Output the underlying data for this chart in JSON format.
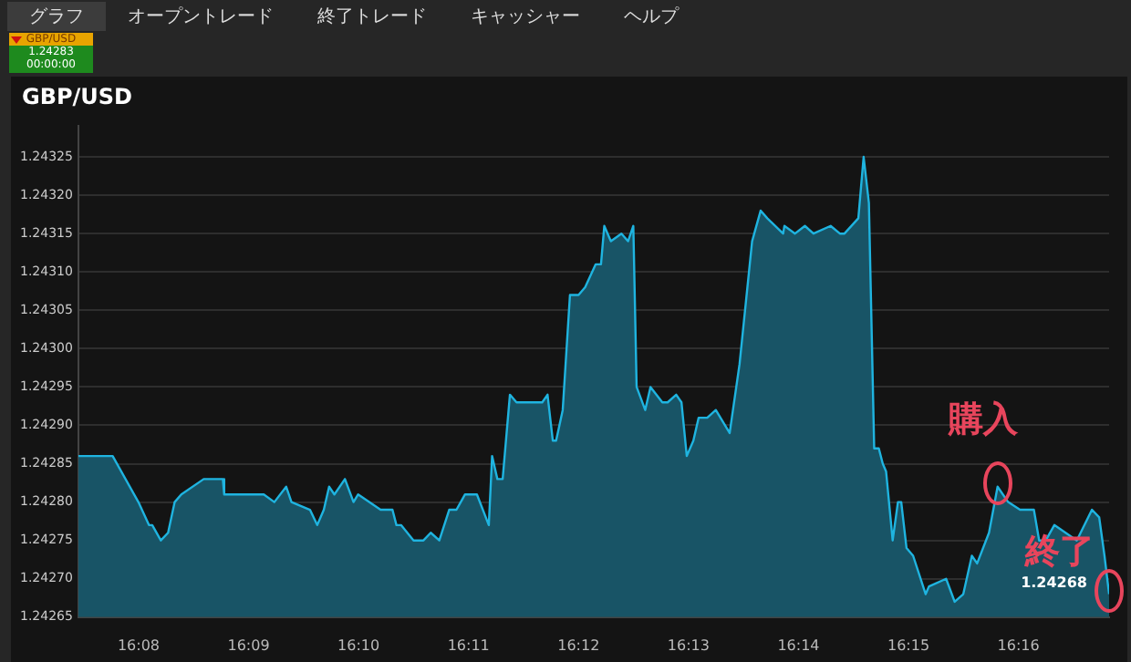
{
  "chart_data": {
    "type": "area",
    "title": "GBP/USD",
    "annotations": [
      "グラフ",
      "オープントレード",
      "終了トレード",
      "キャッシャー",
      "ヘルプ",
      "GBP/USD",
      "1.24283",
      "00:00:00",
      {
        "text": "購入",
        "x": 16.2635,
        "y": 1.24282
      },
      {
        "text": "終了",
        "x": 16.2804,
        "y": 1.24268
      }
    ],
    "x": [
      16.1242,
      16.125,
      16.1258,
      16.1294,
      16.1333,
      16.1349,
      16.1354,
      16.1367,
      16.1378,
      16.1388,
      16.1398,
      16.1432,
      16.1461,
      16.1463,
      16.1523,
      16.1539,
      16.1557,
      16.1565,
      16.1593,
      16.1604,
      16.1614,
      16.1622,
      16.163,
      16.1646,
      16.1659,
      16.1666,
      16.17,
      16.1718,
      16.1724,
      16.1731,
      16.175,
      16.1765,
      16.1776,
      16.1789,
      16.1804,
      16.1815,
      16.1828,
      16.1846,
      16.1864,
      16.1869,
      16.1877,
      16.1885,
      16.1896,
      16.1906,
      16.1945,
      16.1953,
      16.1961,
      16.1966,
      16.1976,
      16.1987,
      16.2,
      16.201,
      16.2026,
      16.2034,
      16.2039,
      16.2049,
      16.2065,
      16.2075,
      16.2083,
      16.2088,
      16.2101,
      16.2109,
      16.2127,
      16.2135,
      16.2148,
      16.2156,
      16.2164,
      16.2174,
      16.2182,
      16.2195,
      16.2208,
      16.2229,
      16.2244,
      16.2263,
      16.2276,
      16.2286,
      16.231,
      16.2312,
      16.2328,
      16.2343,
      16.2356,
      16.2382,
      16.2396,
      16.2403,
      16.2424,
      16.2432,
      16.244,
      16.2448,
      16.2455,
      16.2461,
      16.2466,
      16.2476,
      16.2484,
      16.2489,
      16.2497,
      16.2507,
      16.2526,
      16.2531,
      16.2557,
      16.257,
      16.2583,
      16.2596,
      16.2604,
      16.2622,
      16.2635,
      16.2651,
      16.2669,
      16.2682,
      16.269,
      16.2698,
      16.2708,
      16.2721,
      16.2755,
      16.2778,
      16.2789,
      16.2797,
      16.2804
    ],
    "series": [
      {
        "color": "#1fb4e0",
        "values": [
          1.24286,
          1.24286,
          1.24286,
          1.24286,
          1.2428,
          1.24277,
          1.24277,
          1.24275,
          1.24276,
          1.2428,
          1.24281,
          1.24283,
          1.24283,
          1.24281,
          1.24281,
          1.2428,
          1.24282,
          1.2428,
          1.24279,
          1.24277,
          1.24279,
          1.24282,
          1.24281,
          1.24283,
          1.2428,
          1.24281,
          1.24279,
          1.24279,
          1.24277,
          1.24277,
          1.24275,
          1.24275,
          1.24276,
          1.24275,
          1.24279,
          1.24279,
          1.24281,
          1.24281,
          1.24277,
          1.24286,
          1.24283,
          1.24283,
          1.24294,
          1.24293,
          1.24293,
          1.24294,
          1.24288,
          1.24288,
          1.24292,
          1.24307,
          1.24307,
          1.24308,
          1.24311,
          1.24311,
          1.24316,
          1.24314,
          1.24315,
          1.24314,
          1.24316,
          1.24295,
          1.24292,
          1.24295,
          1.24293,
          1.24293,
          1.24294,
          1.24293,
          1.24286,
          1.24288,
          1.24291,
          1.24291,
          1.24292,
          1.24289,
          1.24298,
          1.24314,
          1.24318,
          1.24317,
          1.24315,
          1.24316,
          1.24315,
          1.24316,
          1.24315,
          1.24316,
          1.24315,
          1.24315,
          1.24317,
          1.24325,
          1.24319,
          1.24287,
          1.24287,
          1.24285,
          1.24284,
          1.24275,
          1.2428,
          1.2428,
          1.24274,
          1.24273,
          1.24268,
          1.24269,
          1.2427,
          1.24267,
          1.24268,
          1.24273,
          1.24272,
          1.24276,
          1.24282,
          1.2428,
          1.24279,
          1.24279,
          1.24279,
          1.24275,
          1.24275,
          1.24277,
          1.24275,
          1.24279,
          1.24278,
          1.24273,
          1.24268
        ],
        "value_labels": [
          null,
          null,
          null,
          null,
          null,
          null,
          null,
          null,
          null,
          null,
          null,
          null,
          null,
          null,
          null,
          null,
          null,
          null,
          null,
          null,
          null,
          null,
          null,
          null,
          null,
          null,
          null,
          null,
          null,
          null,
          null,
          null,
          null,
          null,
          null,
          null,
          null,
          null,
          null,
          null,
          null,
          null,
          null,
          null,
          null,
          null,
          null,
          null,
          null,
          null,
          null,
          null,
          null,
          null,
          null,
          null,
          null,
          null,
          null,
          null,
          null,
          null,
          null,
          null,
          null,
          null,
          null,
          null,
          null,
          null,
          null,
          null,
          null,
          null,
          null,
          null,
          null,
          null,
          null,
          null,
          null,
          null,
          null,
          null,
          null,
          null,
          null,
          null,
          null,
          null,
          null,
          null,
          null,
          null,
          null,
          null,
          null,
          null,
          null,
          null,
          null,
          null,
          null,
          null,
          null,
          null,
          null,
          null,
          null,
          null,
          null,
          null,
          null,
          null,
          null,
          null,
          "1.24268"
        ]
      }
    ],
    "xlim": [
      16.1242,
      16.2804
    ],
    "xticks": [
      {
        "value": 16.13333,
        "label": "16:08"
      },
      {
        "value": 16.15,
        "label": "16:09"
      },
      {
        "value": 16.16667,
        "label": "16:10"
      },
      {
        "value": 16.18333,
        "label": "16:11"
      },
      {
        "value": 16.2,
        "label": "16:12"
      },
      {
        "value": 16.21667,
        "label": "16:13"
      },
      {
        "value": 16.23333,
        "label": "16:14"
      },
      {
        "value": 16.25,
        "label": "16:15"
      },
      {
        "value": 16.26667,
        "label": "16:16"
      }
    ],
    "ylim": [
      1.24265,
      1.24329
    ],
    "yticks": [
      1.24265,
      {
        "value": 1.2427,
        "label": "1.24270"
      },
      1.24275,
      {
        "value": 1.2428,
        "label": "1.24280"
      },
      1.24285,
      {
        "value": 1.2429,
        "label": "1.24290"
      },
      1.24295,
      {
        "value": 1.243,
        "label": "1.24300"
      },
      1.24305,
      {
        "value": 1.2431,
        "label": "1.24310"
      },
      1.24315,
      {
        "value": 1.2432,
        "label": "1.24320"
      },
      1.24325
    ],
    "grid": "y",
    "legend": false
  }
}
